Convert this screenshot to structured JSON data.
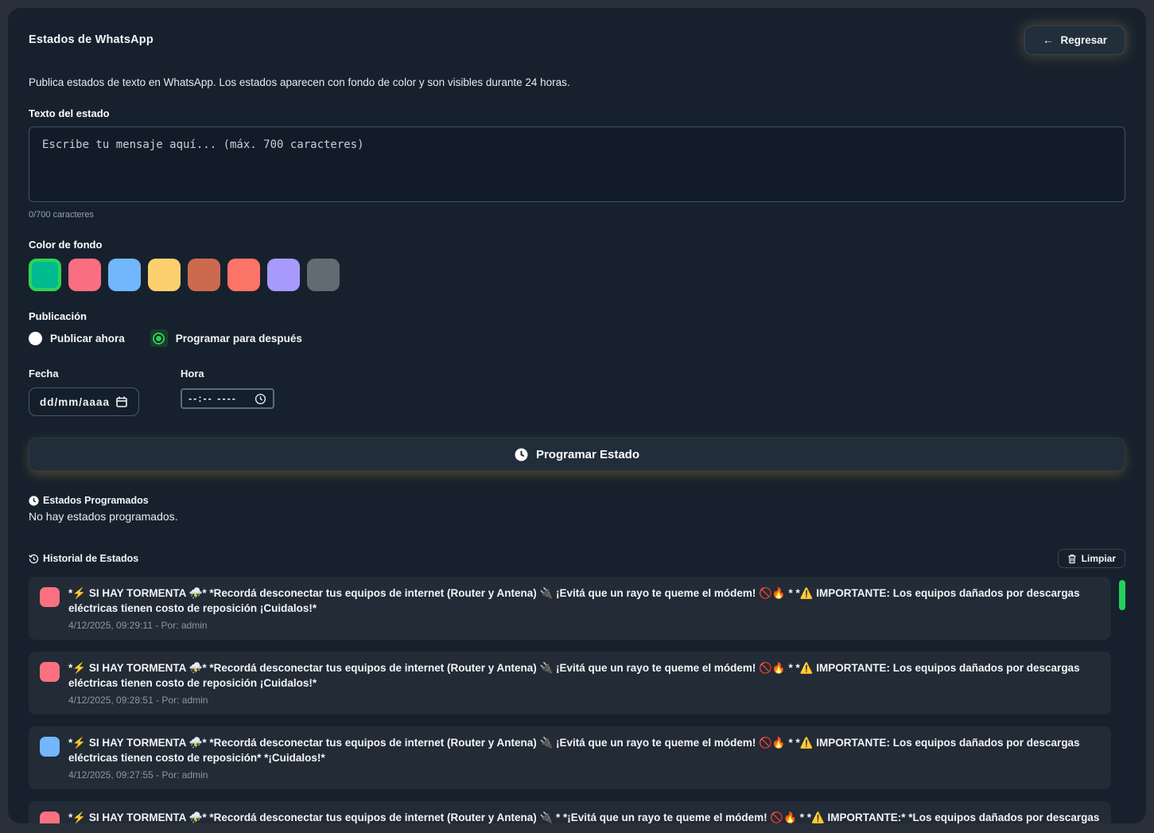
{
  "header": {
    "title": "Estados de WhatsApp",
    "back_arrow": "←",
    "back_label": "Regresar"
  },
  "intro": "Publica estados de texto en WhatsApp. Los estados aparecen con fondo de color y son visibles durante 24 horas.",
  "composer": {
    "label": "Texto del estado",
    "placeholder": "Escribe tu mensaje aquí... (máx. 700 caracteres)",
    "counter": "0/700 caracteres"
  },
  "background_color": {
    "label": "Color de fondo",
    "selected_index": 0,
    "selected_border": "#2ed357",
    "swatches": [
      "#00bb90",
      "#fb6e81",
      "#72b6fc",
      "#fdd06f",
      "#cc6a50",
      "#fb7467",
      "#a89afc",
      "#606b72"
    ]
  },
  "publication": {
    "label": "Publicación",
    "options": [
      {
        "label": "Publicar ahora",
        "selected": false
      },
      {
        "label": "Programar para después",
        "selected": true
      }
    ]
  },
  "schedule": {
    "date_label": "Fecha",
    "date_value": "dd/mm/aaaa",
    "time_label": "Hora",
    "time_value": "--:--  ----"
  },
  "submit": {
    "label": "Programar Estado"
  },
  "scheduled": {
    "title": "Estados Programados",
    "empty": "No hay estados programados."
  },
  "history": {
    "title": "Historial de Estados",
    "clear_label": "Limpiar",
    "scrollbar_color": "#24d05c",
    "items": [
      {
        "color": "#fb7080",
        "text": "*⚡ SI HAY TORMENTA ⛈️* *Recordá desconectar tus equipos de internet (Router y Antena) 🔌 ¡Evitá que un rayo te queme el módem! 🚫🔥 * *⚠️ IMPORTANTE: Los equipos dañados por descargas eléctricas tienen costo de reposición ¡Cuidalos!*",
        "meta": "4/12/2025, 09:29:11 - Por: admin"
      },
      {
        "color": "#fb7080",
        "text": "*⚡ SI HAY TORMENTA ⛈️* *Recordá desconectar tus equipos de internet (Router y Antena) 🔌 ¡Evitá que un rayo te queme el módem! 🚫🔥 * *⚠️ IMPORTANTE: Los equipos dañados por descargas eléctricas tienen costo de reposición ¡Cuidalos!*",
        "meta": "4/12/2025, 09:28:51 - Por: admin"
      },
      {
        "color": "#72b6fc",
        "text": "*⚡ SI HAY TORMENTA ⛈️* *Recordá desconectar tus equipos de internet (Router y Antena) 🔌 ¡Evitá que un rayo te queme el módem! 🚫🔥 * *⚠️ IMPORTANTE: Los equipos dañados por descargas eléctricas tienen costo de reposición* *¡Cuidalos!*",
        "meta": "4/12/2025, 09:27:55 - Por: admin"
      },
      {
        "color": "#fb7080",
        "text": "*⚡ SI HAY TORMENTA ⛈️* *Recordá desconectar tus equipos de internet (Router y Antena) 🔌 * *¡Evitá que un rayo te queme el módem! 🚫🔥 * *⚠️ IMPORTANTE:* *Los equipos dañados por descargas",
        "meta": ""
      }
    ]
  }
}
